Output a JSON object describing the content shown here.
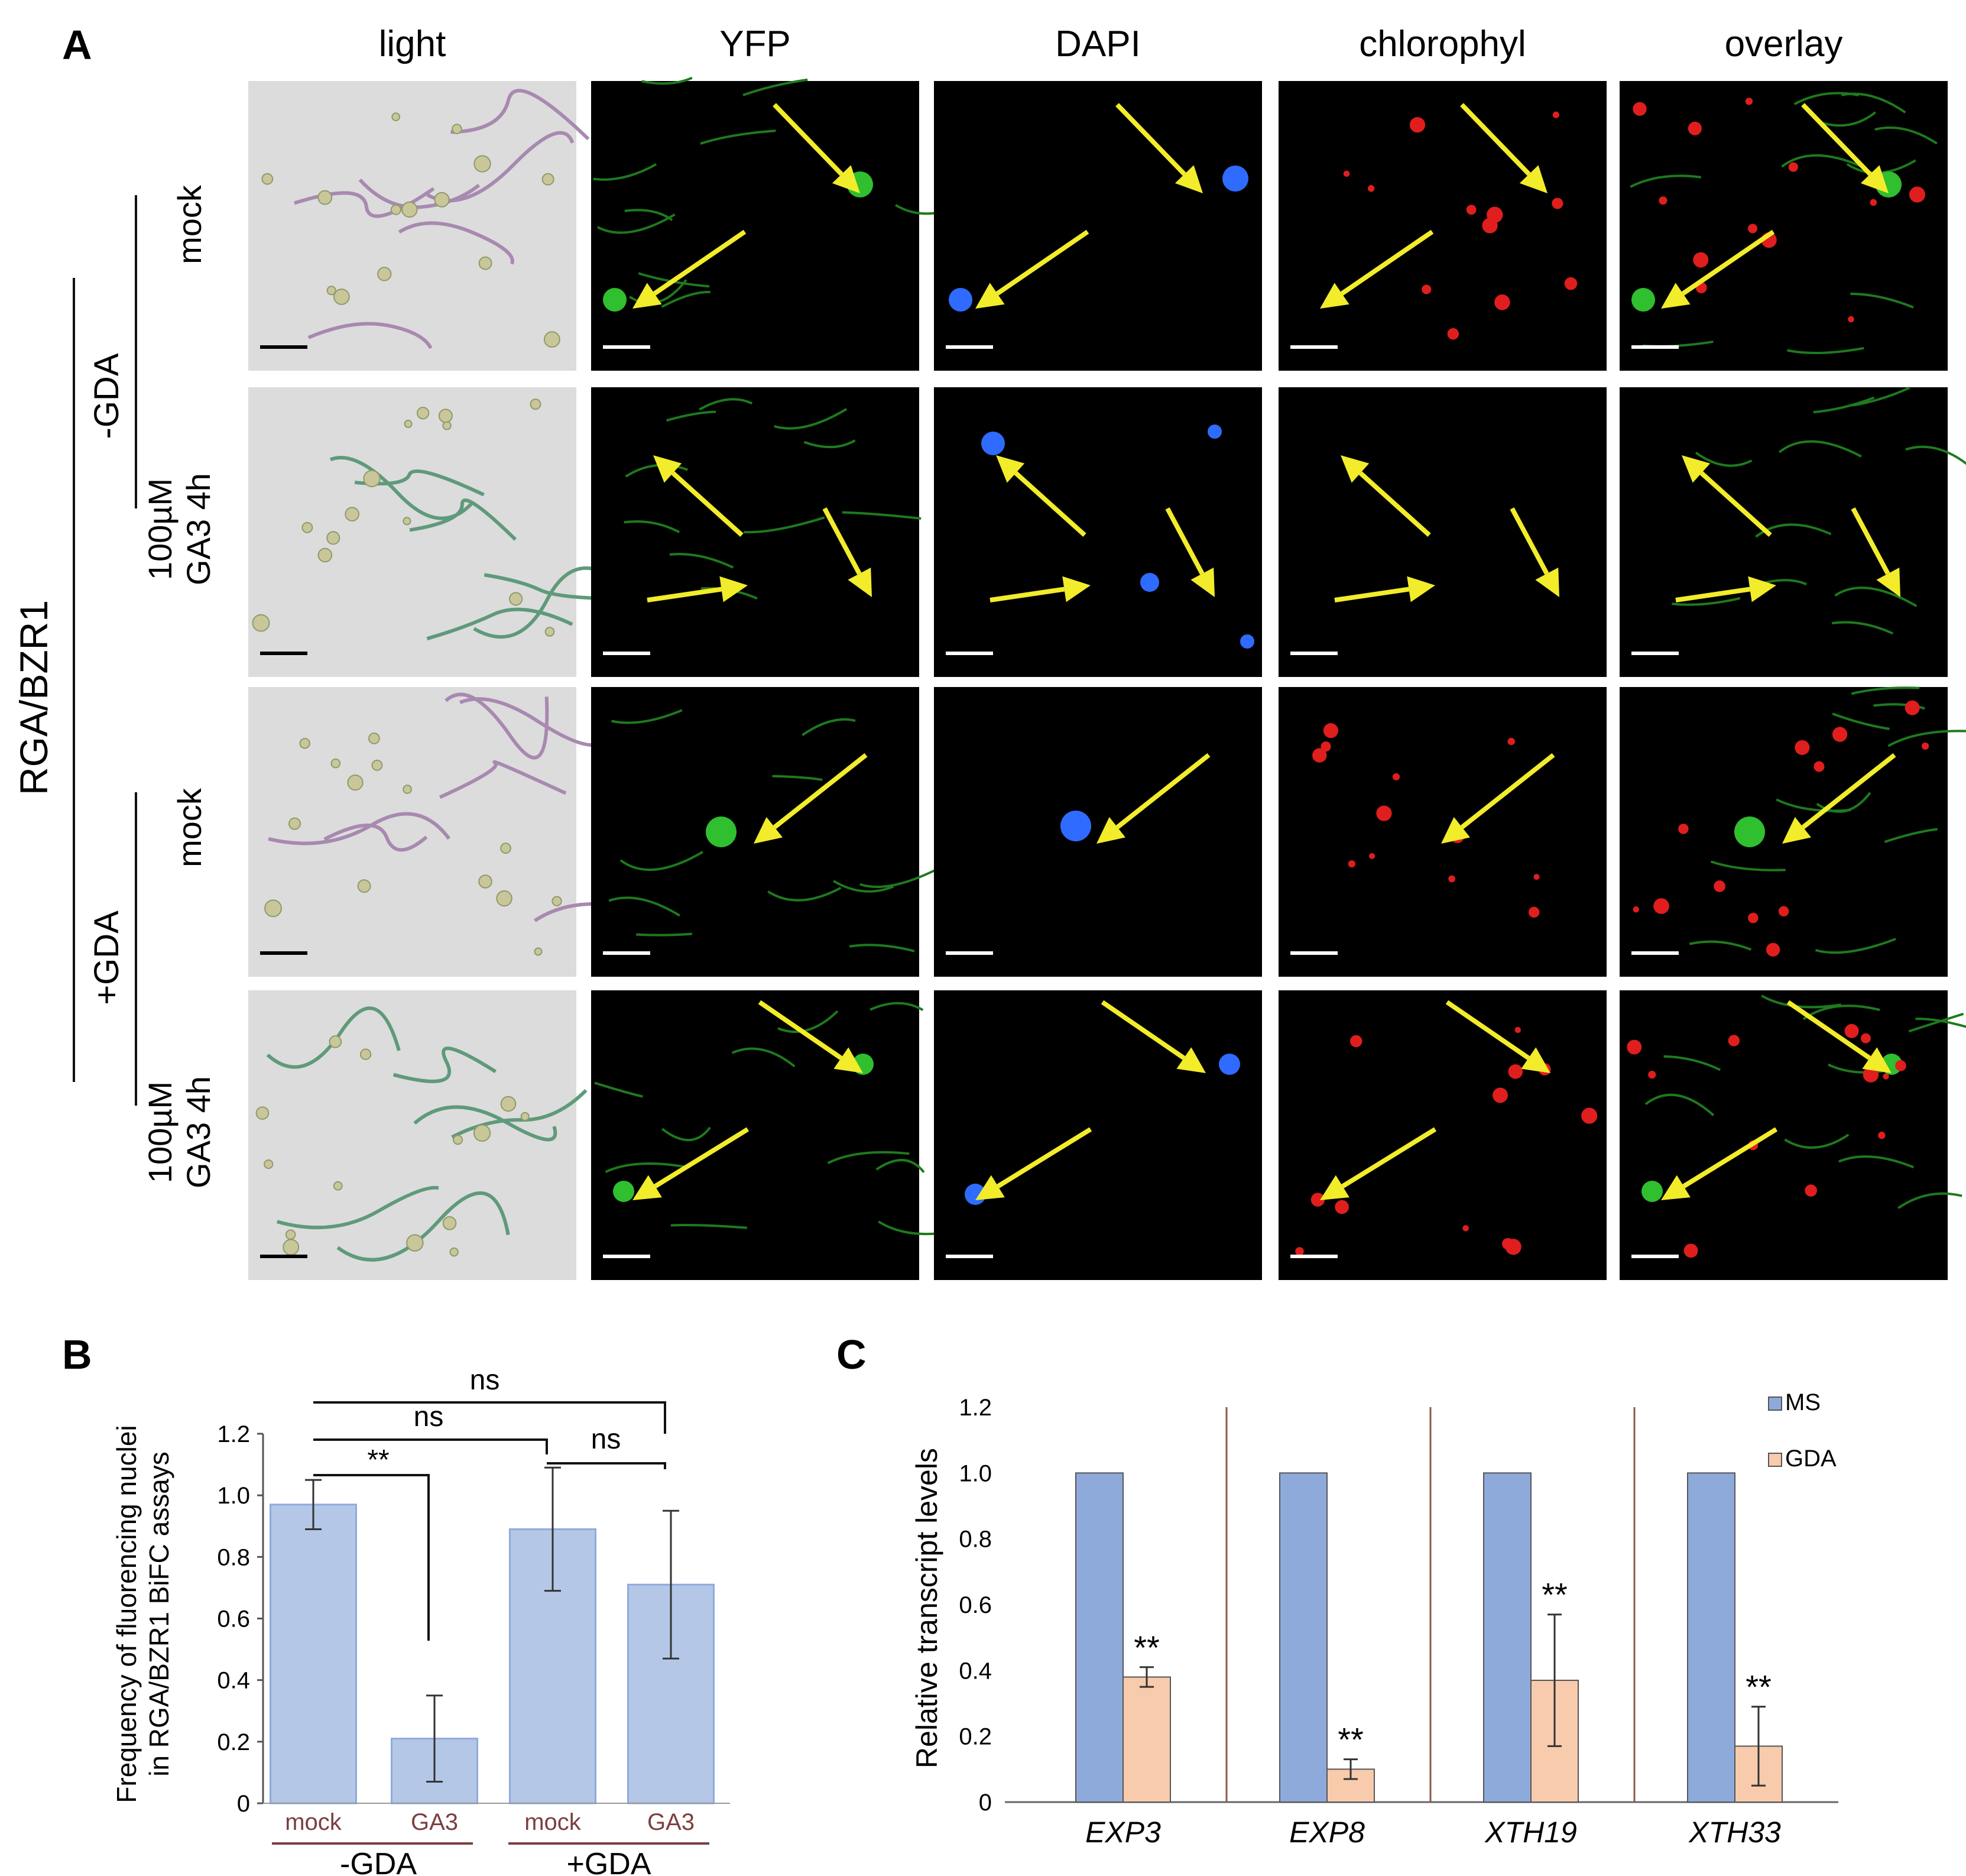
{
  "panel_letters": [
    "A",
    "B",
    "C"
  ],
  "panel_a": {
    "columns": [
      "light",
      "YFP",
      "DAPI",
      "chlorophyl",
      "overlay"
    ],
    "construct_label": "RGA/BZR1",
    "group_labels": [
      "-GDA",
      "+GDA"
    ],
    "row_labels": [
      [
        "mock"
      ],
      [
        "100µM",
        "GA3 4h"
      ],
      [
        "mock"
      ],
      [
        "100µM",
        "GA3 4h"
      ]
    ],
    "colors": {
      "yfp": "#2fbf2f",
      "dapi": "#2f6bff",
      "chlorophyl": "#e01e1e",
      "arrow": "#f2ec2a",
      "light_bg": "#dcdcdc"
    }
  },
  "chart_data": [
    {
      "panel": "B",
      "type": "bar",
      "ylabel": [
        "Frequency of fluorencing nuclei",
        "in RGA/BZR1 BiFC assays"
      ],
      "ylim": [
        0,
        1.2
      ],
      "yticks": [
        "0",
        "0.2",
        "0.4",
        "0.6",
        "0.8",
        "1.0",
        "1.2"
      ],
      "categories": [
        "mock",
        "GA3",
        "mock",
        "GA3"
      ],
      "groups": [
        "-GDA",
        "+GDA"
      ],
      "values": [
        0.97,
        0.21,
        0.89,
        0.71
      ],
      "errors": [
        0.08,
        0.14,
        0.2,
        0.24
      ],
      "significance": [
        "ns",
        "ns",
        "ns",
        "**"
      ],
      "bar_color": "#b4c7e7",
      "bar_edge": "#8faadc",
      "label_color": "#7b3f3f"
    },
    {
      "panel": "C",
      "type": "bar",
      "ylabel": "Relative transcript levels",
      "ylim": [
        0,
        1.2
      ],
      "yticks": [
        "0",
        "0.2",
        "0.4",
        "0.6",
        "0.8",
        "1.0",
        "1.2"
      ],
      "categories": [
        "EXP3",
        "EXP8",
        "XTH19",
        "XTH33"
      ],
      "series": [
        {
          "name": "MS",
          "values": [
            1.0,
            1.0,
            1.0,
            1.0
          ],
          "errors": [
            0,
            0,
            0,
            0
          ],
          "color": "#8eaadb"
        },
        {
          "name": "GDA",
          "values": [
            0.38,
            0.1,
            0.37,
            0.17
          ],
          "errors": [
            0.03,
            0.03,
            0.2,
            0.12
          ],
          "color": "#f8cbad"
        }
      ],
      "significance": [
        "**",
        "**",
        "**",
        "**"
      ],
      "legend_position": "top-right",
      "divider_color": "#8b5a4a"
    }
  ]
}
